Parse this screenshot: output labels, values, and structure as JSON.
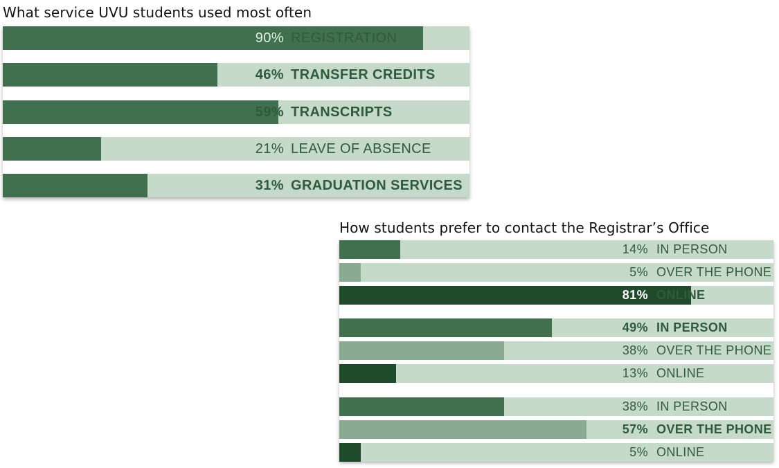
{
  "colors": {
    "track": "#c5dac9",
    "fill_medium": "#41704f",
    "fill_light": "#8aab91",
    "fill_dark": "#1f4a2c",
    "label_text": "#2f5a3c",
    "label_text_on_fill": "#e4efe6"
  },
  "chart_data": [
    {
      "type": "bar",
      "orientation": "horizontal",
      "title": "What service UVU students used most often",
      "categories": [
        "REGISTRATION",
        "TRANSFER CREDITS",
        "TRANSCRIPTS",
        "LEAVE OF ABSENCE",
        "GRADUATION SERVICES"
      ],
      "values": [
        90,
        46,
        59,
        21,
        31
      ],
      "value_labels": [
        "90%",
        "46%",
        "59%",
        "21%",
        "31%"
      ],
      "emphasis": [
        false,
        true,
        true,
        false,
        true
      ],
      "unit": "%",
      "xlim": [
        0,
        100
      ],
      "grid": false
    },
    {
      "type": "bar",
      "orientation": "horizontal",
      "title": "How students prefer to contact the Registrar’s Office",
      "groups": [
        {
          "categories": [
            "IN PERSON",
            "OVER THE PHONE",
            "ONLINE"
          ],
          "values": [
            14,
            5,
            81
          ],
          "value_labels": [
            "14%",
            "5%",
            "81%"
          ],
          "emphasis": [
            false,
            false,
            true
          ]
        },
        {
          "categories": [
            "IN PERSON",
            "OVER THE PHONE",
            "ONLINE"
          ],
          "values": [
            49,
            38,
            13
          ],
          "value_labels": [
            "49%",
            "38%",
            "13%"
          ],
          "emphasis": [
            true,
            false,
            false
          ]
        },
        {
          "categories": [
            "IN PERSON",
            "OVER THE PHONE",
            "ONLINE"
          ],
          "values": [
            38,
            57,
            5
          ],
          "value_labels": [
            "38%",
            "57%",
            "5%"
          ],
          "emphasis": [
            false,
            true,
            false
          ]
        }
      ],
      "unit": "%",
      "xlim": [
        0,
        100
      ],
      "grid": false
    }
  ]
}
